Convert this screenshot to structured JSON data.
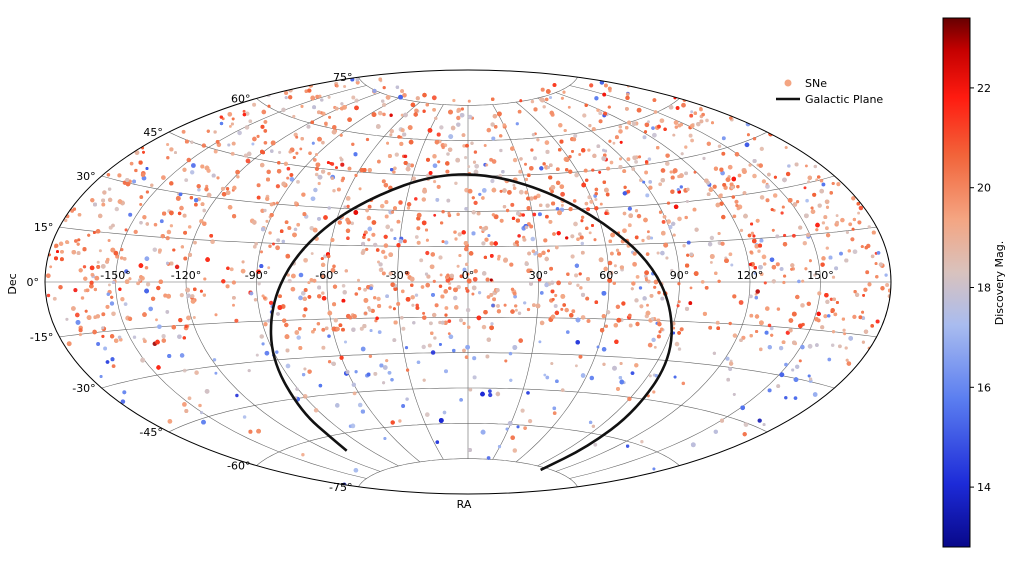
{
  "chart_data": {
    "type": "scatter",
    "projection": "aitoff",
    "title": "",
    "xlabel": "RA",
    "ylabel": "Dec",
    "x_ticks": [
      "-150°",
      "-120°",
      "-90°",
      "-60°",
      "-30°",
      "0°",
      "30°",
      "60°",
      "90°",
      "120°",
      "150°"
    ],
    "x_tick_values": [
      -150,
      -120,
      -90,
      -60,
      -30,
      0,
      30,
      60,
      90,
      120,
      150
    ],
    "y_ticks": [
      "75°",
      "60°",
      "45°",
      "30°",
      "15°",
      "0°",
      "-15°",
      "-30°",
      "-45°",
      "-60°",
      "-75°"
    ],
    "y_tick_values": [
      75,
      60,
      45,
      30,
      15,
      0,
      -15,
      -30,
      -45,
      -60,
      -75
    ],
    "xlim": [
      -180,
      180
    ],
    "ylim": [
      -90,
      90
    ],
    "grid": true,
    "legend": {
      "placement": "top-right",
      "entries": [
        {
          "label": "SNe",
          "color": "#f4a582",
          "marker": "dot"
        },
        {
          "label": "Galactic Plane",
          "color": "#111111",
          "marker": "line"
        }
      ]
    },
    "colorbar": {
      "label": "Discovery Mag.",
      "range": [
        12.8,
        23.4
      ],
      "ticks": [
        "14",
        "16",
        "18",
        "20",
        "22"
      ],
      "tick_values": [
        14,
        16,
        18,
        20,
        22
      ],
      "cmap_stops": [
        {
          "v": 0.0,
          "color": "#08088a"
        },
        {
          "v": 0.12,
          "color": "#1d2bd8"
        },
        {
          "v": 0.28,
          "color": "#5b7ef0"
        },
        {
          "v": 0.42,
          "color": "#a9bcef"
        },
        {
          "v": 0.52,
          "color": "#d9c2bd"
        },
        {
          "v": 0.62,
          "color": "#f4a582"
        },
        {
          "v": 0.74,
          "color": "#f2643a"
        },
        {
          "v": 0.85,
          "color": "#ff1b10"
        },
        {
          "v": 0.94,
          "color": "#c40000"
        },
        {
          "v": 1.0,
          "color": "#670001"
        }
      ]
    },
    "galactic_plane": [
      {
        "ra": 102,
        "dec": -76
      },
      {
        "ra": 102,
        "dec": -65
      },
      {
        "ra": 100,
        "dec": -50
      },
      {
        "ra": 96,
        "dec": -30
      },
      {
        "ra": 88,
        "dec": -10
      },
      {
        "ra": 78,
        "dec": 8
      },
      {
        "ra": 62,
        "dec": 24
      },
      {
        "ra": 40,
        "dec": 38
      },
      {
        "ra": 10,
        "dec": 46
      },
      {
        "ra": -20,
        "dec": 45
      },
      {
        "ra": -45,
        "dec": 36
      },
      {
        "ra": -63,
        "dec": 24
      },
      {
        "ra": -76,
        "dec": 8
      },
      {
        "ra": -85,
        "dec": -10
      },
      {
        "ra": -93,
        "dec": -30
      },
      {
        "ra": -100,
        "dec": -50
      },
      {
        "ra": -104,
        "dec": -62
      },
      {
        "ra": -108,
        "dec": -66
      }
    ],
    "scatter_note_points": 4200,
    "series": [
      {
        "name": "SNe",
        "density_model": "dense north and around dec 0, sparse south and near galactic plane",
        "points": []
      }
    ]
  }
}
